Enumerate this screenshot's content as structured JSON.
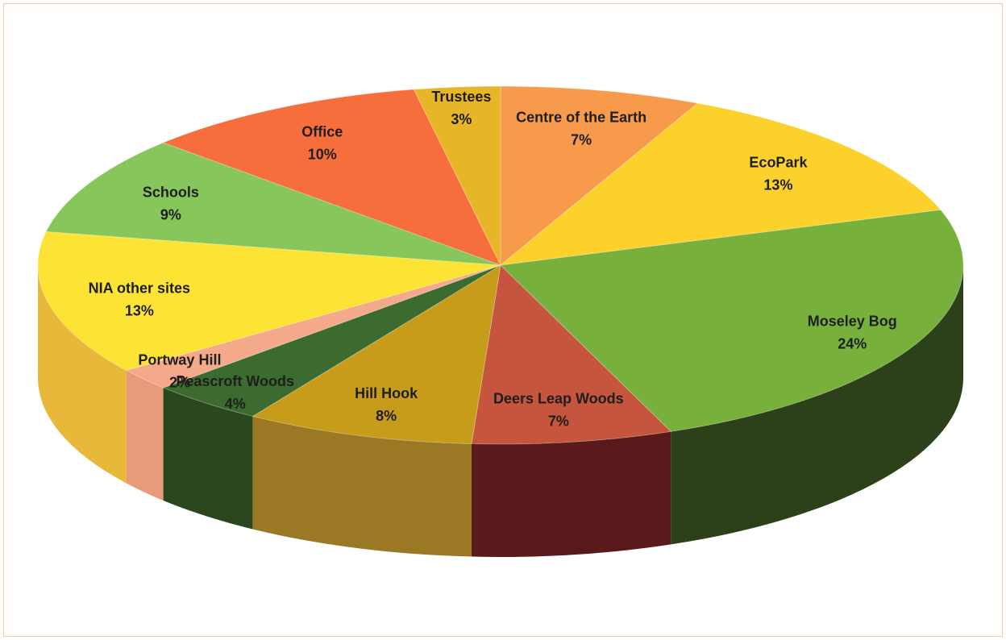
{
  "chart_data": {
    "type": "pie",
    "style": "3d",
    "categories": [
      "Centre of the Earth",
      "EcoPark",
      "Moseley Bog",
      "Deers Leap Woods",
      "Hill Hook",
      "Peascroft Woods",
      "Portway Hill",
      "NIA other sites",
      "Schools",
      "Office",
      "Trustees"
    ],
    "values": [
      7,
      13,
      24,
      7,
      8,
      4,
      2,
      13,
      9,
      10,
      3
    ],
    "value_labels": [
      "7%",
      "13%",
      "24%",
      "7%",
      "8%",
      "4%",
      "2%",
      "13%",
      "9%",
      "10%",
      "3%"
    ],
    "colors": [
      "#f79a4b",
      "#fcd12c",
      "#77b13b",
      "#c5553c",
      "#c79c1b",
      "#3b6b2e",
      "#f4a98a",
      "#fde334",
      "#86c65a",
      "#f66e3b",
      "#e7b628"
    ],
    "side_colors": [
      "#b86a28",
      "#c99a14",
      "#2c4019",
      "#5a1a1b",
      "#9a7824",
      "#2a4720",
      "#e89b7a",
      "#e8b83a",
      "#5e8f3e",
      "#c04a22",
      "#b58a14"
    ]
  }
}
